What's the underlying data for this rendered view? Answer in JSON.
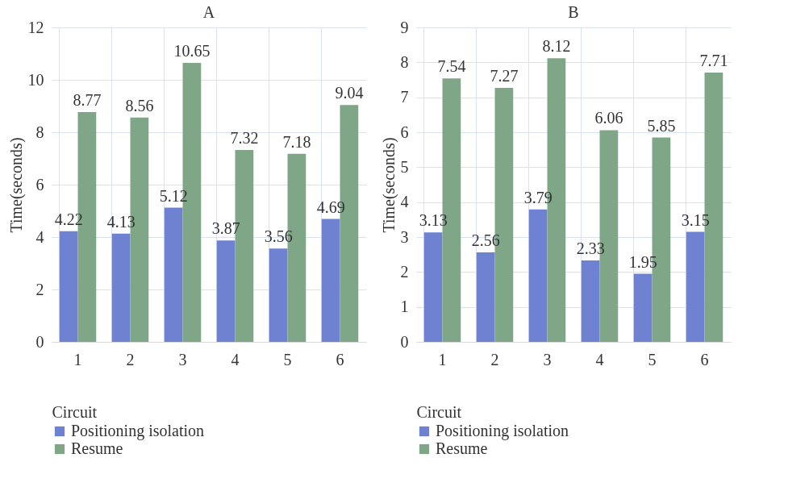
{
  "chart_data": [
    {
      "type": "bar",
      "title": "A",
      "xlabel": "Circuit",
      "ylabel": "Time(seconds)",
      "categories": [
        "1",
        "2",
        "3",
        "4",
        "5",
        "6"
      ],
      "ylim": [
        0,
        12
      ],
      "yticks": [
        0,
        2,
        4,
        6,
        8,
        10,
        12
      ],
      "grid": true,
      "legend": "bottom",
      "data_labels": true,
      "series": [
        {
          "name": "Positioning isolation",
          "color": "#6f82d1",
          "values": [
            4.22,
            4.13,
            5.12,
            3.87,
            3.56,
            4.69
          ]
        },
        {
          "name": "Resume",
          "color": "#7fa787",
          "values": [
            8.77,
            8.56,
            10.65,
            7.32,
            7.18,
            9.04
          ]
        }
      ]
    },
    {
      "type": "bar",
      "title": "B",
      "xlabel": "Circuit",
      "ylabel": "Time(seconds)",
      "categories": [
        "1",
        "2",
        "3",
        "4",
        "5",
        "6"
      ],
      "ylim": [
        0,
        9
      ],
      "yticks": [
        0,
        1,
        2,
        3,
        4,
        5,
        6,
        7,
        8,
        9
      ],
      "grid": true,
      "legend": "bottom",
      "data_labels": true,
      "series": [
        {
          "name": "Positioning isolation",
          "color": "#6f82d1",
          "values": [
            3.13,
            2.56,
            3.79,
            2.33,
            1.95,
            3.15
          ]
        },
        {
          "name": "Resume",
          "color": "#7fa787",
          "values": [
            7.54,
            7.27,
            8.12,
            6.06,
            5.85,
            7.71
          ]
        }
      ]
    }
  ]
}
